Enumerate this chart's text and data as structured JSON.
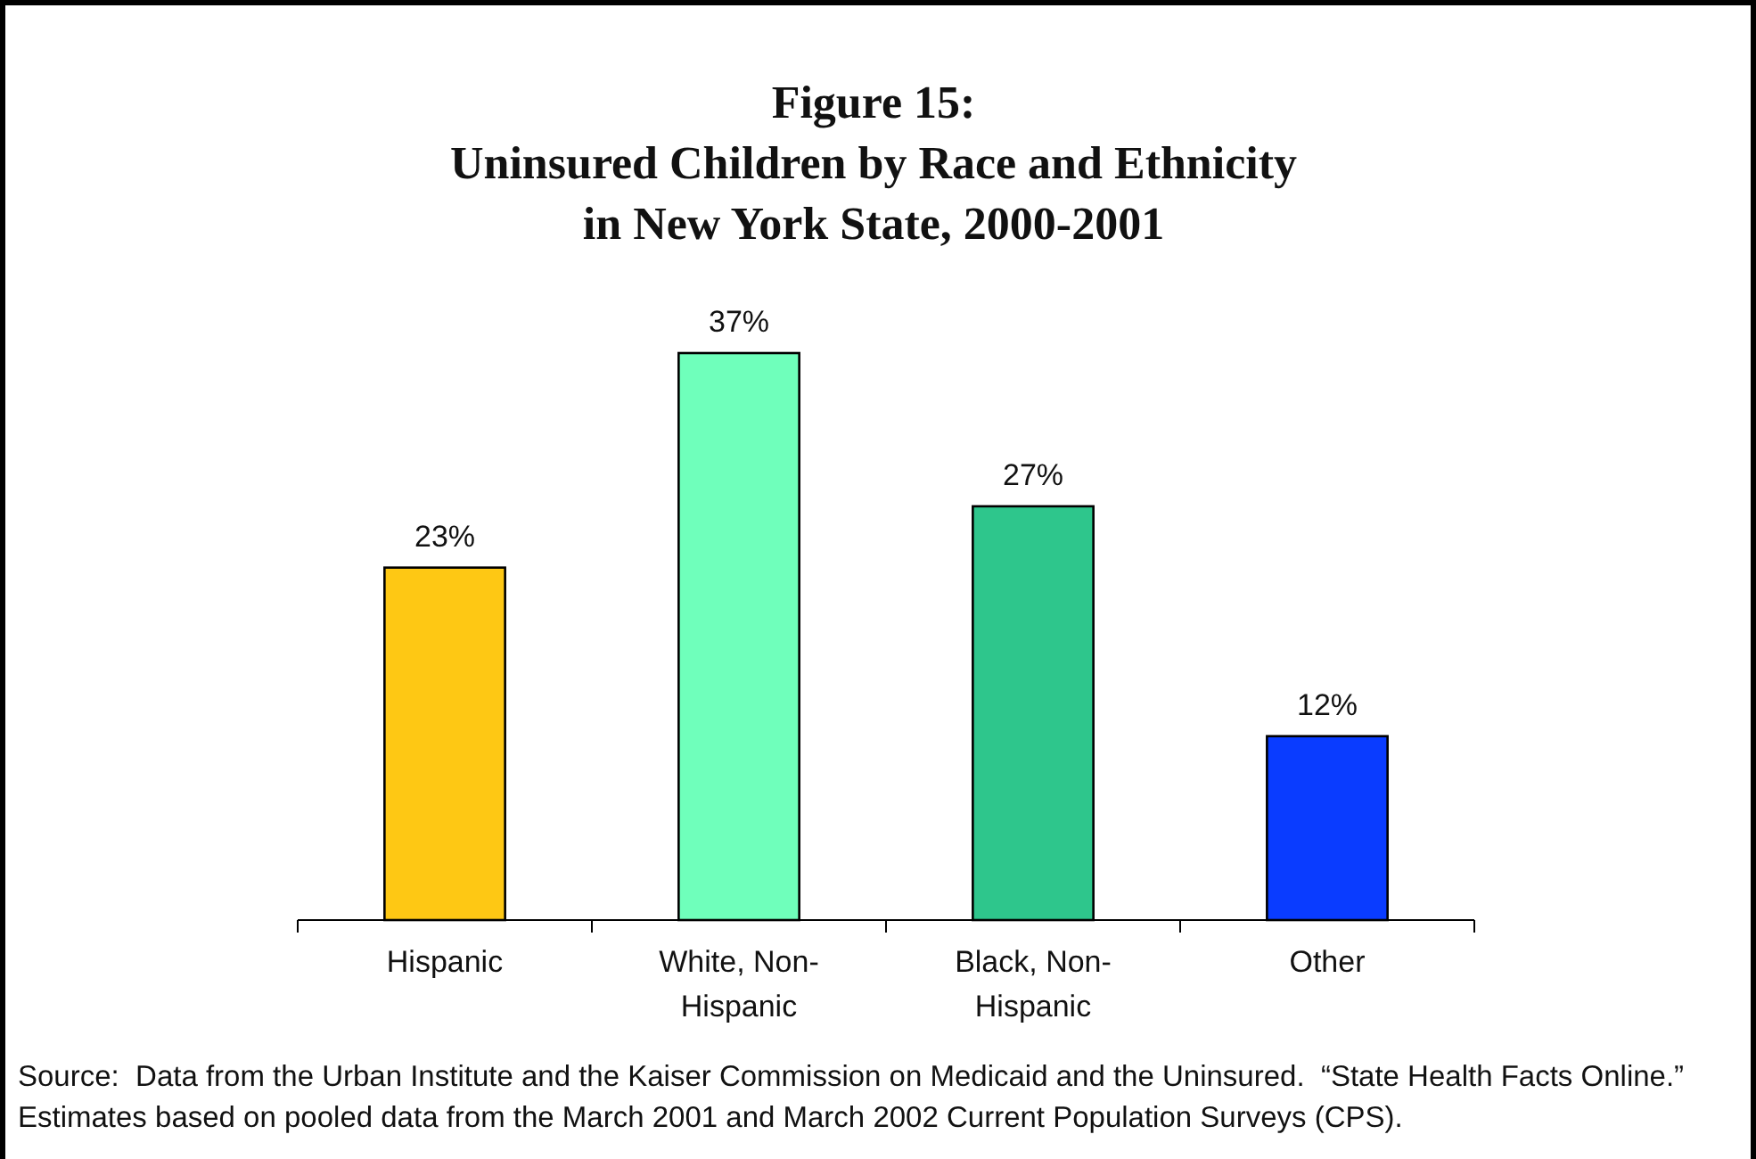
{
  "chart_data": {
    "type": "bar",
    "title": "Figure 15:\nUninsured Children by Race and Ethnicity\nin New York State, 2000-2001",
    "categories": [
      "Hispanic",
      "White, Non-Hispanic",
      "Black, Non-Hispanic",
      "Other"
    ],
    "values": [
      23,
      37,
      27,
      12
    ],
    "colors": [
      "#fec814",
      "#6fffbb",
      "#2ec68c",
      "#0a3cff"
    ],
    "value_labels": [
      "23%",
      "37%",
      "27%",
      "12%"
    ],
    "annotations": [
      "Source:  Data from the Urban Institute and the Kaiser Commission on Medicaid and the Uninsured.  “State Health Facts Online.”  Estimates based on pooled data from the March 2001 and March 2002 Current Population Surveys (CPS)."
    ]
  }
}
